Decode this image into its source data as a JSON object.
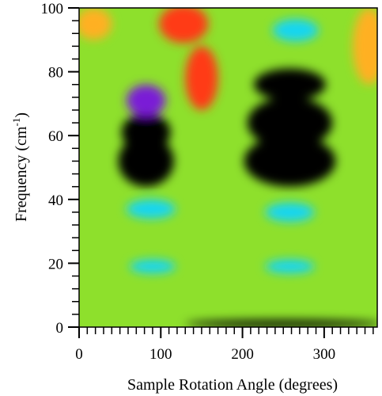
{
  "chart_data": {
    "type": "heatmap",
    "title": "",
    "xlabel": "Sample Rotation Angle (degrees)",
    "ylabel": {
      "main": "Frequency (cm",
      "sup": "-1",
      "close": ")"
    },
    "xlim": [
      0,
      365
    ],
    "ylim": [
      0,
      100
    ],
    "x_ticks": [
      {
        "value": 0,
        "label": "0"
      },
      {
        "value": 100,
        "label": "100"
      },
      {
        "value": 200,
        "label": "200"
      },
      {
        "value": 300,
        "label": "300"
      }
    ],
    "y_ticks": [
      {
        "value": 0,
        "label": "0"
      },
      {
        "value": 20,
        "label": "20"
      },
      {
        "value": 40,
        "label": "40"
      },
      {
        "value": 60,
        "label": "60"
      },
      {
        "value": 80,
        "label": "80"
      },
      {
        "value": 100,
        "label": "100"
      }
    ],
    "colormap": [
      "#000000",
      "#7a1fd6",
      "#2a5cff",
      "#19d6f0",
      "#27e08a",
      "#8ee02c",
      "#f2f21e",
      "#ffb020",
      "#ff3a14",
      "#dd0000"
    ],
    "background_level": 0.6,
    "regions": [
      {
        "name": "dark-lobe-left",
        "cx": 82,
        "cy": 52,
        "rx": 34,
        "ry": 8,
        "level": 0.0
      },
      {
        "name": "dark-lobe-left-mid",
        "cx": 82,
        "cy": 61,
        "rx": 30,
        "ry": 6,
        "level": 0.05
      },
      {
        "name": "dark-lobe-left-upper",
        "cx": 82,
        "cy": 71,
        "rx": 24,
        "ry": 5,
        "level": 0.1
      },
      {
        "name": "dark-lobe-right",
        "cx": 258,
        "cy": 52,
        "rx": 56,
        "ry": 8,
        "level": 0.0
      },
      {
        "name": "dark-lobe-right-mid",
        "cx": 258,
        "cy": 64,
        "rx": 52,
        "ry": 8,
        "level": 0.0
      },
      {
        "name": "dark-lobe-right-upper",
        "cx": 258,
        "cy": 76,
        "rx": 44,
        "ry": 5,
        "level": 0.02
      },
      {
        "name": "cyan-spot-left-37",
        "cx": 88,
        "cy": 37,
        "rx": 30,
        "ry": 3,
        "level": 0.3
      },
      {
        "name": "cyan-spot-right-37",
        "cx": 258,
        "cy": 36,
        "rx": 30,
        "ry": 3,
        "level": 0.3
      },
      {
        "name": "cyan-spot-left-20",
        "cx": 90,
        "cy": 19,
        "rx": 28,
        "ry": 2.2,
        "level": 0.3
      },
      {
        "name": "cyan-spot-right-20",
        "cx": 258,
        "cy": 19,
        "rx": 30,
        "ry": 2.2,
        "level": 0.3
      },
      {
        "name": "cyan-spot-top-right",
        "cx": 265,
        "cy": 93,
        "rx": 28,
        "ry": 3.5,
        "level": 0.3
      },
      {
        "name": "red-top-center",
        "cx": 128,
        "cy": 95,
        "rx": 30,
        "ry": 6,
        "level": 0.9
      },
      {
        "name": "red-top-center-2",
        "cx": 150,
        "cy": 78,
        "rx": 20,
        "ry": 10,
        "level": 0.85
      },
      {
        "name": "orange-top-left",
        "cx": 18,
        "cy": 95,
        "rx": 22,
        "ry": 5,
        "level": 0.75
      },
      {
        "name": "orange-top-right",
        "cx": 355,
        "cy": 88,
        "rx": 20,
        "ry": 12,
        "level": 0.75
      },
      {
        "name": "dark-bottom-strip",
        "cx": 250,
        "cy": 1,
        "rx": 120,
        "ry": 1.2,
        "level": 0.0
      }
    ]
  }
}
